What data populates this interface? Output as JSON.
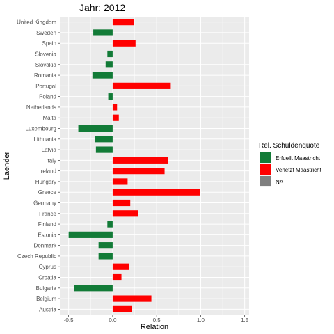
{
  "chart_data": {
    "type": "bar",
    "orientation": "horizontal",
    "title": "Jahr: 2012",
    "xlabel": "Relation",
    "ylabel": "Laender",
    "xlim": [
      -0.6,
      1.55
    ],
    "xticks": [
      -0.5,
      0.0,
      0.5,
      1.0,
      1.5
    ],
    "xtick_labels": [
      "-0.5",
      "0.0",
      "0.5",
      "1.0",
      "1.5"
    ],
    "grid": true,
    "legend_position": "right",
    "categories": [
      "Austria",
      "Belgium",
      "Bulgaria",
      "Croatia",
      "Cyprus",
      "Czech Republic",
      "Denmark",
      "Estonia",
      "Finland",
      "France",
      "Germany",
      "Greece",
      "Hungary",
      "Ireland",
      "Italy",
      "Latvia",
      "Lithuania",
      "Luxembourg",
      "Malta",
      "Netherlands",
      "Poland",
      "Portugal",
      "Romania",
      "Slovakia",
      "Slovenia",
      "Spain",
      "Sweden",
      "United Kingdom"
    ],
    "values": [
      0.22,
      0.44,
      -0.44,
      0.1,
      0.19,
      -0.16,
      -0.16,
      -0.5,
      -0.06,
      0.29,
      0.2,
      0.99,
      0.17,
      0.59,
      0.63,
      -0.19,
      -0.2,
      -0.39,
      0.07,
      0.05,
      -0.05,
      0.66,
      -0.23,
      -0.08,
      -0.06,
      0.26,
      -0.22,
      0.24
    ],
    "groups": [
      "Verletzt Maastricht",
      "Verletzt Maastricht",
      "Erfuellt Maastricht",
      "Verletzt Maastricht",
      "Verletzt Maastricht",
      "Erfuellt Maastricht",
      "Erfuellt Maastricht",
      "Erfuellt Maastricht",
      "Erfuellt Maastricht",
      "Verletzt Maastricht",
      "Verletzt Maastricht",
      "Verletzt Maastricht",
      "Verletzt Maastricht",
      "Verletzt Maastricht",
      "Verletzt Maastricht",
      "Erfuellt Maastricht",
      "Erfuellt Maastricht",
      "Erfuellt Maastricht",
      "Verletzt Maastricht",
      "Verletzt Maastricht",
      "Erfuellt Maastricht",
      "Verletzt Maastricht",
      "Erfuellt Maastricht",
      "Erfuellt Maastricht",
      "Erfuellt Maastricht",
      "Verletzt Maastricht",
      "Erfuellt Maastricht",
      "Verletzt Maastricht"
    ],
    "legend": {
      "title": "Rel. Schuldenquote",
      "entries": [
        {
          "label": "Erfuellt Maastricht",
          "color": "#127b37"
        },
        {
          "label": "Verletzt Maastricht",
          "color": "#ff0000"
        },
        {
          "label": "NA",
          "color": "#7f7f7f"
        }
      ]
    },
    "colors": {
      "Erfuellt Maastricht": "#127b37",
      "Verletzt Maastricht": "#ff0000",
      "NA": "#7f7f7f",
      "panel_background": "#ebebeb",
      "grid": "#ffffff"
    }
  }
}
